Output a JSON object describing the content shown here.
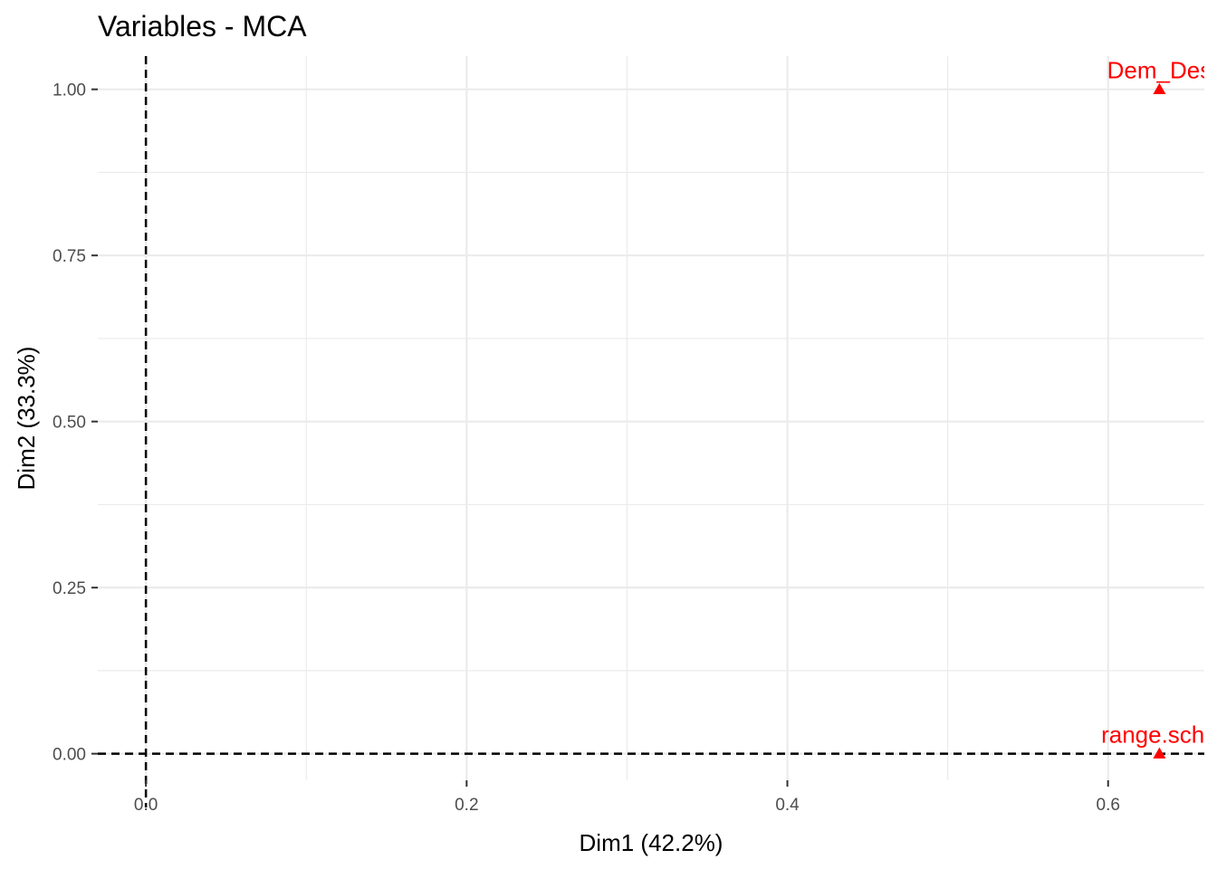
{
  "chart_data": {
    "type": "scatter",
    "title": "Variables - MCA",
    "xlabel": "Dim1 (42.2%)",
    "ylabel": "Dim2 (33.3%)",
    "xlim": [
      -0.03,
      0.66
    ],
    "ylim": [
      -0.04,
      1.05
    ],
    "x_ticks": [
      0.0,
      0.2,
      0.4,
      0.6
    ],
    "x_tick_labels": [
      "0.0",
      "0.2",
      "0.4",
      "0.6"
    ],
    "y_ticks": [
      0.0,
      0.25,
      0.5,
      0.75,
      1.0
    ],
    "y_tick_labels": [
      "0.00",
      "0.25",
      "0.50",
      "0.75",
      "1.00"
    ],
    "grid": true,
    "reference_lines": {
      "x": 0,
      "y": 0,
      "style": "dashed"
    },
    "colors": {
      "points": "#ff0000",
      "grid": "#ebebeb",
      "axis_text": "#4d4d4d",
      "reference": "#000000"
    },
    "points": [
      {
        "label": "Dem_Des",
        "x": 0.632,
        "y": 1.0
      },
      {
        "label": "range.scho",
        "x": 0.632,
        "y": 0.0
      }
    ]
  }
}
